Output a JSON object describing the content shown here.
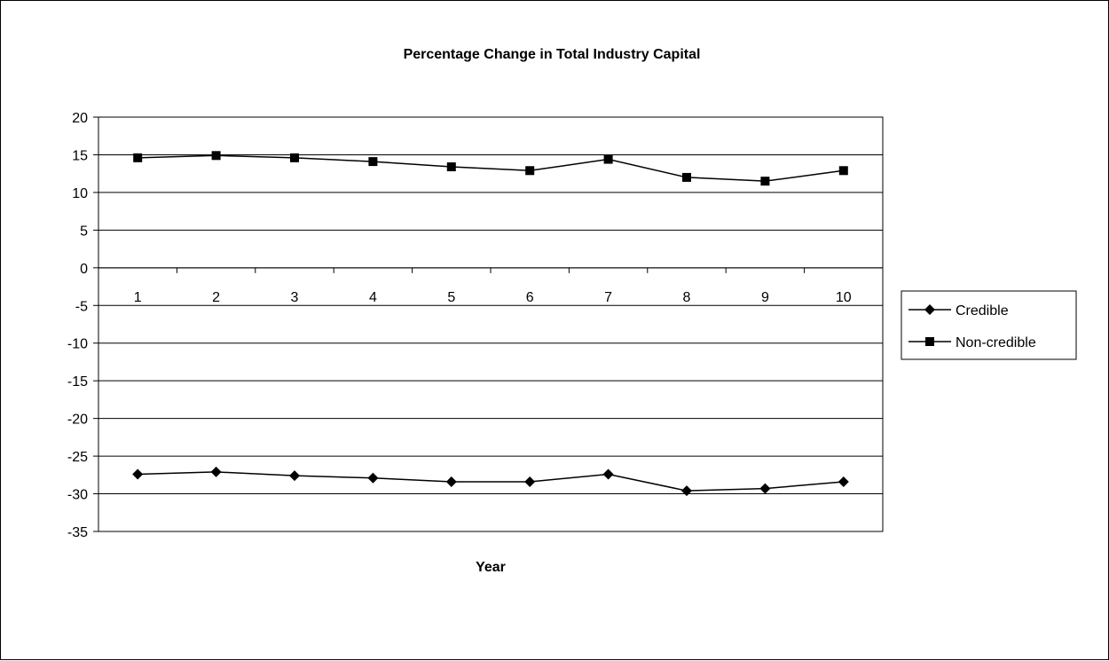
{
  "chart_data": {
    "type": "line",
    "title": "Percentage Change in Total Industry Capital",
    "xlabel": "Year",
    "ylabel": "",
    "categories": [
      "1",
      "2",
      "3",
      "4",
      "5",
      "6",
      "7",
      "8",
      "9",
      "10"
    ],
    "ylim": [
      -35,
      20
    ],
    "yticks": [
      20,
      15,
      10,
      5,
      0,
      -5,
      -10,
      -15,
      -20,
      -25,
      -30,
      -35
    ],
    "grid": true,
    "legend_position": "right",
    "series": [
      {
        "name": "Credible",
        "marker": "diamond",
        "color": "#000000",
        "values": [
          -27.4,
          -27.1,
          -27.6,
          -27.9,
          -28.4,
          -28.4,
          -27.4,
          -29.6,
          -29.3,
          -28.4
        ]
      },
      {
        "name": "Non-credible",
        "marker": "square",
        "color": "#000000",
        "values": [
          14.6,
          14.9,
          14.6,
          14.1,
          13.4,
          12.9,
          14.4,
          12.0,
          11.5,
          12.9
        ]
      }
    ]
  }
}
